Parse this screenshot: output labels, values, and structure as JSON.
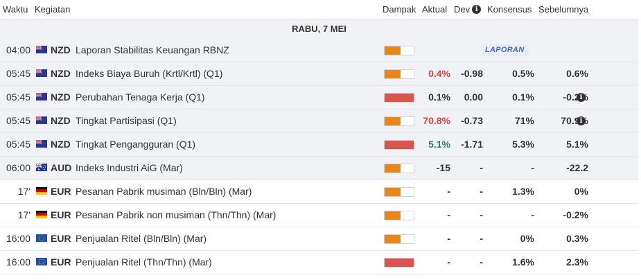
{
  "columns": {
    "time": "Waktu",
    "event": "Kegiatan",
    "impact": "Dampak",
    "actual": "Aktual",
    "dev": "Dev",
    "consensus": "Konsensus",
    "previous": "Sebelumnya"
  },
  "date": "RABU, 7 MEI",
  "colors": {
    "impact_medium": "#e8861a",
    "impact_high": "#d9534f",
    "actual_red": "#d64541",
    "actual_green": "#2a7d6b"
  },
  "events": [
    {
      "time": "04:00",
      "flag": "nz-flag-icon",
      "currency": "NZD",
      "name": "Laporan Stabilitas Keuangan RBNZ",
      "impact": "medium",
      "impact_fraction": 0.55,
      "actual": "",
      "actual_color": "dark",
      "dev": "",
      "consensus": "",
      "previous": "",
      "badge": "LAPORAN",
      "prev_info": false,
      "shaded": true
    },
    {
      "time": "05:45",
      "flag": "nz-flag-icon",
      "currency": "NZD",
      "name": "Indeks Biaya Buruh (Krtl/Krtl) (Q1)",
      "impact": "medium",
      "impact_fraction": 0.55,
      "actual": "0.4%",
      "actual_color": "red",
      "dev": "-0.98",
      "consensus": "0.5%",
      "previous": "0.6%",
      "badge": "",
      "prev_info": false,
      "shaded": true
    },
    {
      "time": "05:45",
      "flag": "nz-flag-icon",
      "currency": "NZD",
      "name": "Perubahan Tenaga Kerja (Q1)",
      "impact": "high",
      "impact_fraction": 1.0,
      "actual": "0.1%",
      "actual_color": "dark",
      "dev": "0.00",
      "consensus": "0.1%",
      "previous": "-0.2%",
      "badge": "",
      "prev_info": true,
      "shaded": true
    },
    {
      "time": "05:45",
      "flag": "nz-flag-icon",
      "currency": "NZD",
      "name": "Tingkat Partisipasi (Q1)",
      "impact": "medium",
      "impact_fraction": 0.55,
      "actual": "70.8%",
      "actual_color": "red",
      "dev": "-0.73",
      "consensus": "71%",
      "previous": "70.9%",
      "badge": "",
      "prev_info": true,
      "shaded": true
    },
    {
      "time": "05:45",
      "flag": "nz-flag-icon",
      "currency": "NZD",
      "name": "Tingkat Pengangguran (Q1)",
      "impact": "high",
      "impact_fraction": 1.0,
      "actual": "5.1%",
      "actual_color": "green",
      "dev": "-1.71",
      "consensus": "5.3%",
      "previous": "5.1%",
      "badge": "",
      "prev_info": false,
      "shaded": true
    },
    {
      "time": "06:00",
      "flag": "au-flag-icon",
      "currency": "AUD",
      "name": "Indeks Industri AiG (Mar)",
      "impact": "medium",
      "impact_fraction": 0.55,
      "actual": "-15",
      "actual_color": "dark",
      "dev": "-",
      "consensus": "-",
      "previous": "-22.2",
      "badge": "",
      "prev_info": false,
      "shaded": true
    },
    {
      "time": "17'",
      "flag": "de-flag-icon",
      "currency": "EUR",
      "name": "Pesanan Pabrik musiman (Bln/Bln) (Mar)",
      "impact": "medium",
      "impact_fraction": 0.55,
      "actual": "-",
      "actual_color": "dark",
      "dev": "-",
      "consensus": "1.3%",
      "previous": "0%",
      "badge": "",
      "prev_info": false,
      "shaded": false
    },
    {
      "time": "17'",
      "flag": "de-flag-icon",
      "currency": "EUR",
      "name": "Pesanan Pabrik non musiman (Thn/Thn) (Mar)",
      "impact": "medium",
      "impact_fraction": 0.55,
      "actual": "-",
      "actual_color": "dark",
      "dev": "-",
      "consensus": "-",
      "previous": "-0.2%",
      "badge": "",
      "prev_info": false,
      "shaded": false
    },
    {
      "time": "16:00",
      "flag": "eu-flag-icon",
      "currency": "EUR",
      "name": "Penjualan Ritel (Bln/Bln) (Mar)",
      "impact": "medium",
      "impact_fraction": 0.55,
      "actual": "-",
      "actual_color": "dark",
      "dev": "-",
      "consensus": "0%",
      "previous": "0.3%",
      "badge": "",
      "prev_info": false,
      "shaded": false
    },
    {
      "time": "16:00",
      "flag": "eu-flag-icon",
      "currency": "EUR",
      "name": "Penjualan Ritel (Thn/Thn) (Mar)",
      "impact": "high",
      "impact_fraction": 1.0,
      "actual": "-",
      "actual_color": "dark",
      "dev": "-",
      "consensus": "1.6%",
      "previous": "2.3%",
      "badge": "",
      "prev_info": false,
      "shaded": false
    }
  ]
}
